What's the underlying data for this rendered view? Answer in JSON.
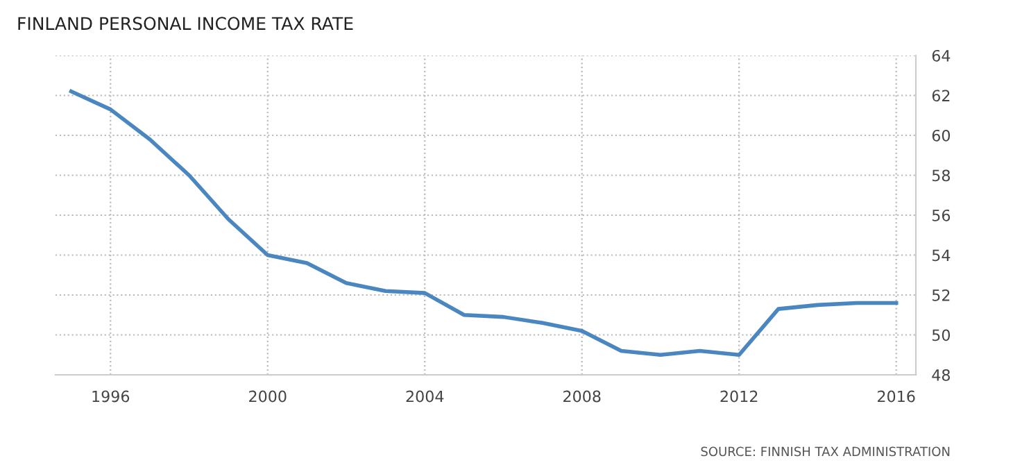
{
  "chart_data": {
    "type": "line",
    "title": "FINLAND PERSONAL INCOME TAX RATE",
    "x": [
      1995,
      1996,
      1997,
      1998,
      1999,
      2000,
      2001,
      2002,
      2003,
      2004,
      2005,
      2006,
      2007,
      2008,
      2009,
      2010,
      2011,
      2012,
      2013,
      2014,
      2015,
      2016
    ],
    "series": [
      {
        "color": "#4a86c0",
        "values": [
          62.2,
          61.3,
          59.8,
          58.0,
          55.8,
          54.0,
          53.6,
          52.6,
          52.2,
          52.1,
          51.0,
          50.9,
          50.6,
          50.2,
          49.2,
          49.0,
          49.2,
          49.0,
          51.3,
          51.5,
          51.6,
          51.6
        ]
      }
    ],
    "xlim": [
      1994.6,
      2016.5
    ],
    "xticks": [
      1996,
      2000,
      2004,
      2008,
      2012,
      2016
    ],
    "ylim": [
      48,
      64
    ],
    "yticks": [
      48,
      50,
      52,
      54,
      56,
      58,
      60,
      62,
      64
    ],
    "grid": true,
    "legend": false,
    "marker": "none",
    "line_style": "solid",
    "annotations": [
      "SOURCE: FINNISH TAX ADMINISTRATION"
    ]
  }
}
